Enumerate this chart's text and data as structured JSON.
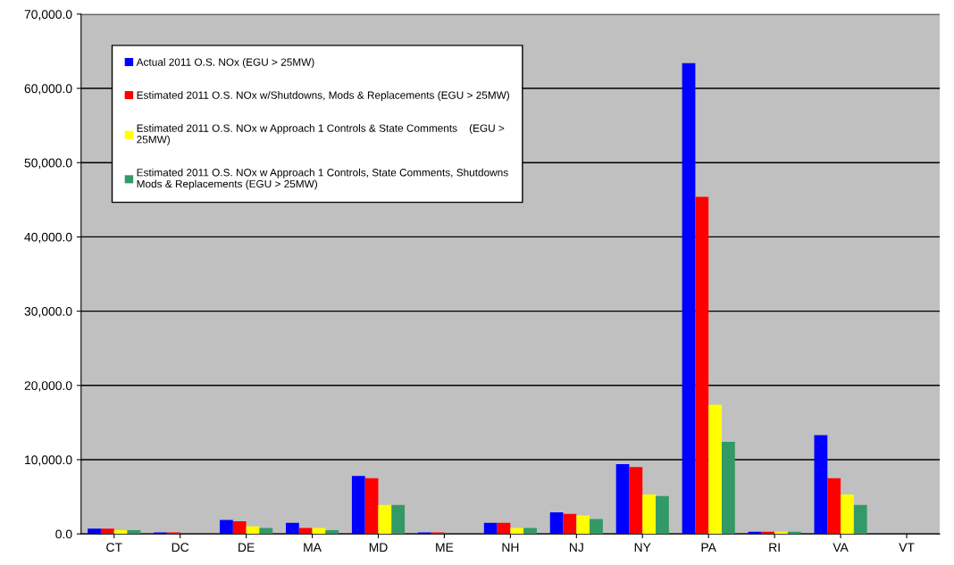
{
  "chart_data": {
    "type": "bar",
    "categories": [
      "CT",
      "DC",
      "DE",
      "MA",
      "MD",
      "ME",
      "NH",
      "NJ",
      "NY",
      "PA",
      "RI",
      "VA",
      "VT"
    ],
    "series": [
      {
        "name": "Actual 2011 O.S. NOx (EGU > 25MW)",
        "color": "#0000ff",
        "values": [
          700,
          200,
          1900,
          1500,
          7800,
          200,
          1500,
          2900,
          9400,
          63400,
          300,
          13300,
          0
        ]
      },
      {
        "name": "Estimated 2011 O.S. NOx w/Shutdowns, Mods & Replacements (EGU > 25MW)",
        "color": "#ff0000",
        "values": [
          700,
          200,
          1700,
          800,
          7500,
          200,
          1500,
          2700,
          9000,
          45400,
          300,
          7500,
          0
        ]
      },
      {
        "name": "Estimated 2011 O.S. NOx w Approach 1 Controls & State Comments    (EGU >\n25MW)",
        "color": "#ffff00",
        "values": [
          500,
          0,
          1000,
          800,
          3900,
          0,
          800,
          2500,
          5300,
          17400,
          300,
          5300,
          0
        ]
      },
      {
        "name": "Estimated 2011 O.S. NOx w Approach 1 Controls, State Comments, Shutdowns\nMods & Replacements (EGU > 25MW)",
        "color": "#339966",
        "values": [
          500,
          0,
          800,
          500,
          3900,
          0,
          800,
          2000,
          5100,
          12400,
          300,
          3900,
          0
        ]
      }
    ],
    "ylim": [
      0,
      70000
    ],
    "yticks": [
      {
        "value": 0,
        "label": "0.0"
      },
      {
        "value": 10000,
        "label": "10,000.0"
      },
      {
        "value": 20000,
        "label": "20,000.0"
      },
      {
        "value": 30000,
        "label": "30,000.0"
      },
      {
        "value": 40000,
        "label": "40,000.0"
      },
      {
        "value": 50000,
        "label": "50,000.0"
      },
      {
        "value": 60000,
        "label": "60,000.0"
      },
      {
        "value": 70000,
        "label": "70,000.0"
      }
    ],
    "grid": "y",
    "legend": "top left"
  }
}
